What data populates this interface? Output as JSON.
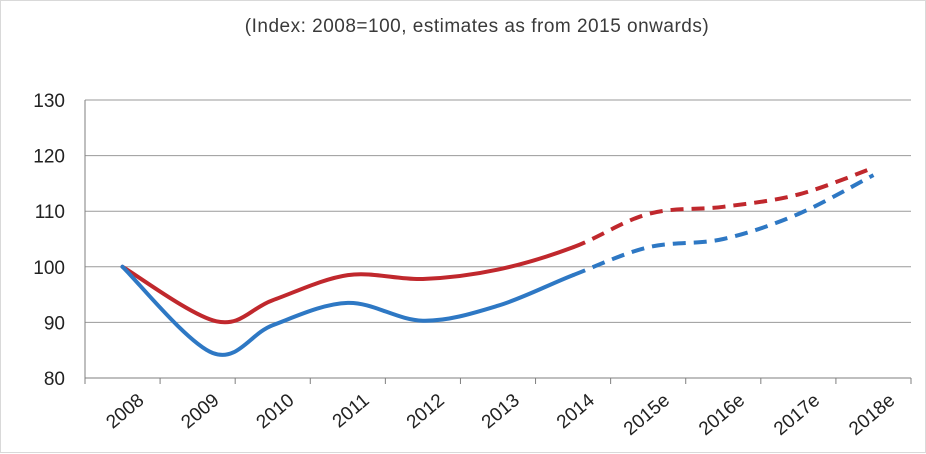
{
  "chart_data": {
    "type": "line",
    "title": "",
    "subtitle": "(Index: 2008=100, estimates as from 2015 onwards)",
    "xlabel": "",
    "ylabel": "",
    "categories": [
      "2008",
      "2009",
      "2010",
      "2011",
      "2012",
      "2013",
      "2014",
      "2015e",
      "2016e",
      "2017e",
      "2018e"
    ],
    "ylim": [
      80,
      130
    ],
    "yticks": [
      "80",
      "90",
      "100",
      "110",
      "120",
      "130"
    ],
    "grid": true,
    "legend": "none",
    "estimates_from_index": 7,
    "series": [
      {
        "color": "#c0282d",
        "points": [
          [
            0,
            100
          ],
          [
            1.25,
            90.2
          ],
          [
            2,
            94
          ],
          [
            3,
            98.5
          ],
          [
            4,
            97.8
          ],
          [
            5,
            99.5
          ],
          [
            6,
            103.5
          ],
          [
            7,
            109.5
          ],
          [
            8,
            110.8
          ],
          [
            9,
            113
          ],
          [
            10,
            117.8
          ]
        ]
      },
      {
        "color": "#2e78c4",
        "points": [
          [
            0,
            100
          ],
          [
            1.2,
            84.5
          ],
          [
            2,
            89.5
          ],
          [
            3,
            93.5
          ],
          [
            4,
            90.3
          ],
          [
            5,
            93
          ],
          [
            6,
            98.5
          ],
          [
            7,
            103.5
          ],
          [
            8,
            105
          ],
          [
            9,
            109.5
          ],
          [
            10,
            116.5
          ]
        ]
      }
    ]
  }
}
